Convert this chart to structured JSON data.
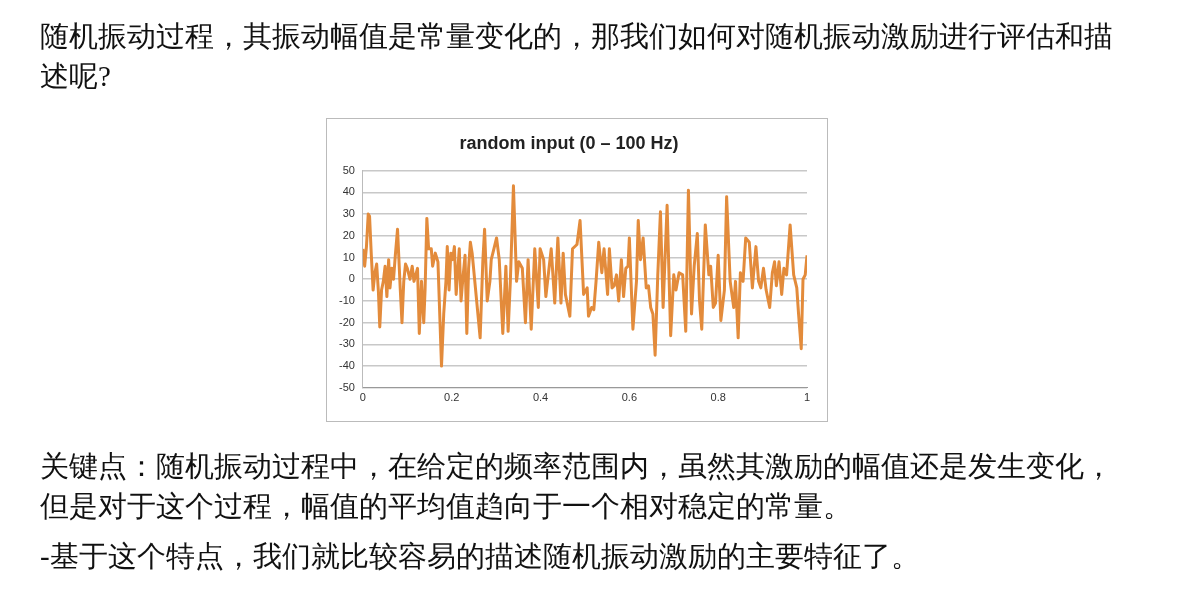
{
  "chart_data": {
    "type": "line",
    "title": "random input (0 – 100 Hz)",
    "annotations": [
      "随机振动过程，其振动幅值是常量变化的，那我们如何对随机振动激励进行评估和描述呢?",
      "关键点：随机振动过程中，在给定的频率范围内，虽然其激励的幅值还是发生变化，但是对于这个过程，幅值的平均值趋向于一个相对稳定的常量。",
      "-基于这个特点，我们就比较容易的描述随机振动激励的主要特征了。"
    ],
    "x": [
      0,
      0.004,
      0.008,
      0.012,
      0.015,
      0.019,
      0.023,
      0.027,
      0.031,
      0.035,
      0.038,
      0.042,
      0.046,
      0.05,
      0.054,
      0.058,
      0.061,
      0.065,
      0.069,
      0.073,
      0.078,
      0.084,
      0.088,
      0.092,
      0.096,
      0.1,
      0.106,
      0.111,
      0.115,
      0.123,
      0.127,
      0.132,
      0.137,
      0.14,
      0.144,
      0.148,
      0.154,
      0.157,
      0.163,
      0.169,
      0.174,
      0.177,
      0.182,
      0.187,
      0.19,
      0.194,
      0.198,
      0.202,
      0.206,
      0.21,
      0.214,
      0.217,
      0.221,
      0.225,
      0.23,
      0.234,
      0.238,
      0.242,
      0.246,
      0.264,
      0.27,
      0.274,
      0.28,
      0.286,
      0.289,
      0.295,
      0.301,
      0.307,
      0.315,
      0.322,
      0.327,
      0.332,
      0.339,
      0.346,
      0.351,
      0.359,
      0.366,
      0.372,
      0.379,
      0.387,
      0.395,
      0.399,
      0.407,
      0.412,
      0.418,
      0.424,
      0.432,
      0.439,
      0.446,
      0.451,
      0.456,
      0.466,
      0.472,
      0.482,
      0.489,
      0.497,
      0.505,
      0.508,
      0.515,
      0.52,
      0.525,
      0.531,
      0.538,
      0.543,
      0.551,
      0.555,
      0.561,
      0.566,
      0.571,
      0.576,
      0.582,
      0.587,
      0.592,
      0.597,
      0.6,
      0.608,
      0.616,
      0.62,
      0.625,
      0.631,
      0.638,
      0.643,
      0.648,
      0.653,
      0.658,
      0.664,
      0.67,
      0.676,
      0.685,
      0.693,
      0.7,
      0.705,
      0.712,
      0.72,
      0.727,
      0.733,
      0.74,
      0.746,
      0.753,
      0.758,
      0.763,
      0.771,
      0.779,
      0.783,
      0.789,
      0.794,
      0.8,
      0.806,
      0.814,
      0.819,
      0.827,
      0.835,
      0.839,
      0.845,
      0.85,
      0.856,
      0.862,
      0.87,
      0.877,
      0.885,
      0.891,
      0.896,
      0.902,
      0.908,
      0.916,
      0.922,
      0.927,
      0.931,
      0.937,
      0.943,
      0.948,
      0.954,
      0.962,
      0.97,
      0.977,
      0.981,
      0.987,
      0.991,
      0.996,
      1
    ],
    "values": [
      14,
      6,
      15,
      30,
      29,
      11,
      -5,
      3,
      7,
      -6,
      -22,
      -5,
      -1,
      6,
      -8,
      9,
      -4,
      5,
      0,
      11,
      23,
      -4,
      -20,
      -1,
      7,
      5,
      0,
      6,
      -1,
      5,
      -25,
      -1,
      -20,
      -5,
      28,
      14,
      14,
      6,
      12,
      8,
      -22,
      -40,
      -16,
      -1,
      15,
      -5,
      12,
      9,
      15,
      -7,
      5,
      14,
      -10,
      0,
      11,
      -25,
      5,
      17,
      12,
      -27,
      8,
      23,
      -10,
      -1,
      9,
      14,
      19,
      9,
      -25,
      6,
      -24,
      -1,
      43,
      -1,
      8,
      5,
      -20,
      9,
      -23,
      14,
      -13,
      14,
      9,
      -8,
      3,
      14,
      -11,
      19,
      -11,
      12,
      -7,
      -17,
      14,
      16,
      27,
      -7,
      -4,
      -17,
      -13,
      -14,
      -1,
      17,
      3,
      14,
      -7,
      14,
      -4,
      -3,
      2,
      -10,
      9,
      -8,
      5,
      6,
      19,
      -23,
      -1,
      27,
      9,
      19,
      -4,
      -3,
      -13,
      -16,
      -35,
      2,
      31,
      -13,
      34,
      -26,
      2,
      -5,
      3,
      2,
      -24,
      41,
      -16,
      6,
      21,
      -10,
      -23,
      25,
      2,
      6,
      -13,
      -11,
      11,
      -19,
      -5,
      38,
      -1,
      -13,
      -1,
      -27,
      3,
      -1,
      19,
      17,
      -4,
      15,
      -1,
      -4,
      5,
      -5,
      -13,
      3,
      8,
      -3,
      8,
      -7,
      5,
      2,
      25,
      2,
      -4,
      -16,
      -32,
      0,
      2,
      11
    ],
    "color": "#e38b3b",
    "xlim": [
      0,
      1
    ],
    "xticks": [
      0,
      0.2,
      0.4,
      0.6,
      0.8,
      1
    ],
    "ylim": [
      -50,
      50
    ],
    "yticks": [
      -50,
      -40,
      -30,
      -20,
      -10,
      0,
      10,
      20,
      30,
      40,
      50
    ],
    "grid": "y"
  }
}
